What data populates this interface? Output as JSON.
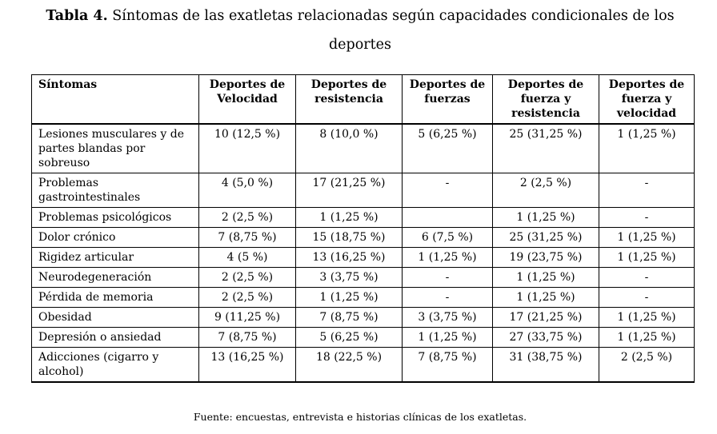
{
  "caption": {
    "label": "Tabla 4.",
    "text_line1": " Síntomas de las exatletas relacionadas según capacidades condicionales de los",
    "text_line2": "deportes"
  },
  "table": {
    "headers": [
      [
        "Síntomas"
      ],
      [
        "Deportes de",
        "Velocidad"
      ],
      [
        "Deportes de",
        "resistencia"
      ],
      [
        "Deportes de",
        "fuerzas"
      ],
      [
        "Deportes de",
        "fuerza y",
        "resistencia"
      ],
      [
        "Deportes de",
        "fuerza y",
        "velocidad"
      ]
    ],
    "rows": [
      [
        "Lesiones musculares y de partes blandas por sobreuso",
        "10 (12,5 %)",
        "8 (10,0 %)",
        "5 (6,25 %)",
        "25 (31,25 %)",
        "1 (1,25 %)"
      ],
      [
        "Problemas gastrointestinales",
        "4 (5,0 %)",
        "17 (21,25 %)",
        "-",
        "2 (2,5 %)",
        "-"
      ],
      [
        "Problemas psicológicos",
        "2 (2,5 %)",
        "1 (1,25 %)",
        "",
        "1 (1,25 %)",
        "-"
      ],
      [
        "Dolor crónico",
        "7 (8,75 %)",
        "15 (18,75 %)",
        "6 (7,5 %)",
        "25 (31,25 %)",
        "1 (1,25 %)"
      ],
      [
        "Rigidez articular",
        "4 (5 %)",
        "13 (16,25 %)",
        "1 (1,25 %)",
        "19 (23,75 %)",
        "1 (1,25 %)"
      ],
      [
        "Neurodegeneración",
        "2 (2,5 %)",
        "3 (3,75 %)",
        "-",
        "1 (1,25 %)",
        "-"
      ],
      [
        "Pérdida de memoria",
        "2 (2,5 %)",
        "1 (1,25 %)",
        "-",
        "1 (1,25 %)",
        "-"
      ],
      [
        "Obesidad",
        "9 (11,25 %)",
        "7 (8,75 %)",
        "3 (3,75 %)",
        "17 (21,25 %)",
        "1 (1,25 %)"
      ],
      [
        "Depresión o ansiedad",
        "7 (8,75 %)",
        "5 (6,25 %)",
        "1 (1,25 %)",
        "27 (33,75 %)",
        "1 (1,25 %)"
      ],
      [
        "Adicciones (cigarro y alcohol)",
        "13 (16,25 %)",
        "18 (22,5 %)",
        "7 (8,75 %)",
        "31 (38,75 %)",
        "2 (2,5 %)"
      ]
    ]
  },
  "source_note": "Fuente: encuestas, entrevista e historias clínicas de los exatletas."
}
